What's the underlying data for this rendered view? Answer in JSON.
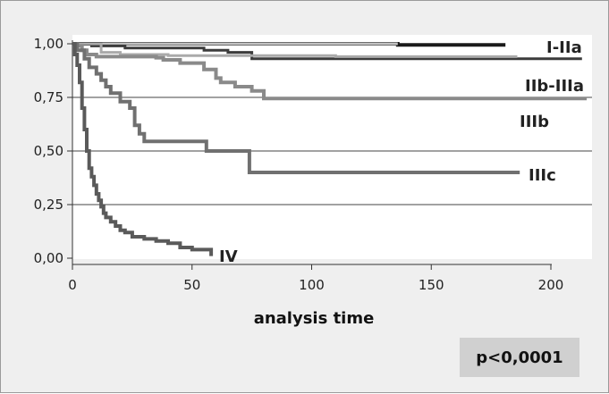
{
  "chart_data": {
    "type": "line",
    "step": true,
    "title": "",
    "xlabel": "analysis time",
    "ylabel": "",
    "xlim": [
      0,
      215
    ],
    "ylim": [
      0,
      1
    ],
    "x_ticks": [
      0,
      50,
      100,
      150,
      200
    ],
    "y_ticks": [
      0,
      0.25,
      0.5,
      0.75,
      1
    ],
    "y_tick_labels": [
      "0,00",
      "0,25",
      "0,50",
      "0,75",
      "1,00"
    ],
    "grid": "horizontal",
    "annotation": "p<0,0001",
    "series": [
      {
        "name": "I-IIa",
        "color": "#1a1a1a",
        "points": [
          [
            0,
            1
          ],
          [
            136,
            1
          ],
          [
            136,
            0.995
          ],
          [
            181,
            0.995
          ]
        ]
      },
      {
        "name": "",
        "color": "#c2c2c2",
        "points": [
          [
            0,
            1
          ],
          [
            136,
            1
          ]
        ]
      },
      {
        "name": "",
        "color": "#3c3c3c",
        "points": [
          [
            0,
            1
          ],
          [
            8,
            1
          ],
          [
            8,
            0.99
          ],
          [
            22,
            0.99
          ],
          [
            22,
            0.98
          ],
          [
            55,
            0.98
          ],
          [
            55,
            0.97
          ],
          [
            65,
            0.97
          ],
          [
            65,
            0.96
          ],
          [
            75,
            0.96
          ],
          [
            75,
            0.93
          ],
          [
            213,
            0.93
          ]
        ]
      },
      {
        "name": "",
        "color": "#aaaaaa",
        "points": [
          [
            0,
            1
          ],
          [
            12,
            1
          ],
          [
            12,
            0.96
          ],
          [
            20,
            0.96
          ],
          [
            20,
            0.95
          ],
          [
            40,
            0.95
          ],
          [
            40,
            0.945
          ],
          [
            110,
            0.945
          ],
          [
            110,
            0.94
          ],
          [
            186,
            0.94
          ]
        ]
      },
      {
        "name": "IIb-IIIa",
        "color": "#8a8a8a",
        "points": [
          [
            0,
            1
          ],
          [
            2,
            1
          ],
          [
            2,
            0.99
          ],
          [
            4,
            0.99
          ],
          [
            4,
            0.97
          ],
          [
            6,
            0.97
          ],
          [
            6,
            0.95
          ],
          [
            10,
            0.95
          ],
          [
            10,
            0.94
          ],
          [
            35,
            0.94
          ],
          [
            35,
            0.935
          ],
          [
            38,
            0.935
          ],
          [
            38,
            0.925
          ],
          [
            45,
            0.925
          ],
          [
            45,
            0.91
          ],
          [
            55,
            0.91
          ],
          [
            55,
            0.88
          ],
          [
            60,
            0.88
          ],
          [
            60,
            0.84
          ],
          [
            62,
            0.84
          ],
          [
            62,
            0.82
          ],
          [
            68,
            0.82
          ],
          [
            68,
            0.8
          ],
          [
            75,
            0.8
          ],
          [
            75,
            0.78
          ],
          [
            80,
            0.78
          ],
          [
            80,
            0.745
          ],
          [
            215,
            0.745
          ]
        ]
      },
      {
        "name": "IIIb",
        "color": "#999999",
        "points": []
      },
      {
        "name": "IIIc",
        "color": "#707070",
        "points": [
          [
            0,
            1
          ],
          [
            2,
            1
          ],
          [
            2,
            0.97
          ],
          [
            5,
            0.97
          ],
          [
            5,
            0.93
          ],
          [
            7,
            0.93
          ],
          [
            7,
            0.89
          ],
          [
            10,
            0.89
          ],
          [
            10,
            0.86
          ],
          [
            12,
            0.86
          ],
          [
            12,
            0.83
          ],
          [
            14,
            0.83
          ],
          [
            14,
            0.8
          ],
          [
            16,
            0.8
          ],
          [
            16,
            0.77
          ],
          [
            20,
            0.77
          ],
          [
            20,
            0.73
          ],
          [
            24,
            0.73
          ],
          [
            24,
            0.7
          ],
          [
            26,
            0.7
          ],
          [
            26,
            0.62
          ],
          [
            28,
            0.62
          ],
          [
            28,
            0.58
          ],
          [
            30,
            0.58
          ],
          [
            30,
            0.545
          ],
          [
            56,
            0.545
          ],
          [
            56,
            0.5
          ],
          [
            74,
            0.5
          ],
          [
            74,
            0.4
          ],
          [
            187,
            0.4
          ]
        ]
      },
      {
        "name": "IV",
        "color": "#5a5a5a",
        "points": [
          [
            0,
            1
          ],
          [
            1,
            1
          ],
          [
            1,
            0.95
          ],
          [
            2,
            0.95
          ],
          [
            2,
            0.9
          ],
          [
            3,
            0.9
          ],
          [
            3,
            0.82
          ],
          [
            4,
            0.82
          ],
          [
            4,
            0.7
          ],
          [
            5,
            0.7
          ],
          [
            5,
            0.6
          ],
          [
            6,
            0.6
          ],
          [
            6,
            0.5
          ],
          [
            7,
            0.5
          ],
          [
            7,
            0.42
          ],
          [
            8,
            0.42
          ],
          [
            8,
            0.38
          ],
          [
            9,
            0.38
          ],
          [
            9,
            0.34
          ],
          [
            10,
            0.34
          ],
          [
            10,
            0.3
          ],
          [
            11,
            0.3
          ],
          [
            11,
            0.27
          ],
          [
            12,
            0.27
          ],
          [
            12,
            0.24
          ],
          [
            13,
            0.24
          ],
          [
            13,
            0.21
          ],
          [
            14,
            0.21
          ],
          [
            14,
            0.19
          ],
          [
            16,
            0.19
          ],
          [
            16,
            0.17
          ],
          [
            18,
            0.17
          ],
          [
            18,
            0.15
          ],
          [
            20,
            0.15
          ],
          [
            20,
            0.13
          ],
          [
            22,
            0.13
          ],
          [
            22,
            0.12
          ],
          [
            25,
            0.12
          ],
          [
            25,
            0.1
          ],
          [
            30,
            0.1
          ],
          [
            30,
            0.09
          ],
          [
            35,
            0.09
          ],
          [
            35,
            0.08
          ],
          [
            40,
            0.08
          ],
          [
            40,
            0.07
          ],
          [
            45,
            0.07
          ],
          [
            45,
            0.05
          ],
          [
            50,
            0.05
          ],
          [
            50,
            0.04
          ],
          [
            58,
            0.04
          ],
          [
            58,
            0.01
          ]
        ]
      }
    ]
  }
}
